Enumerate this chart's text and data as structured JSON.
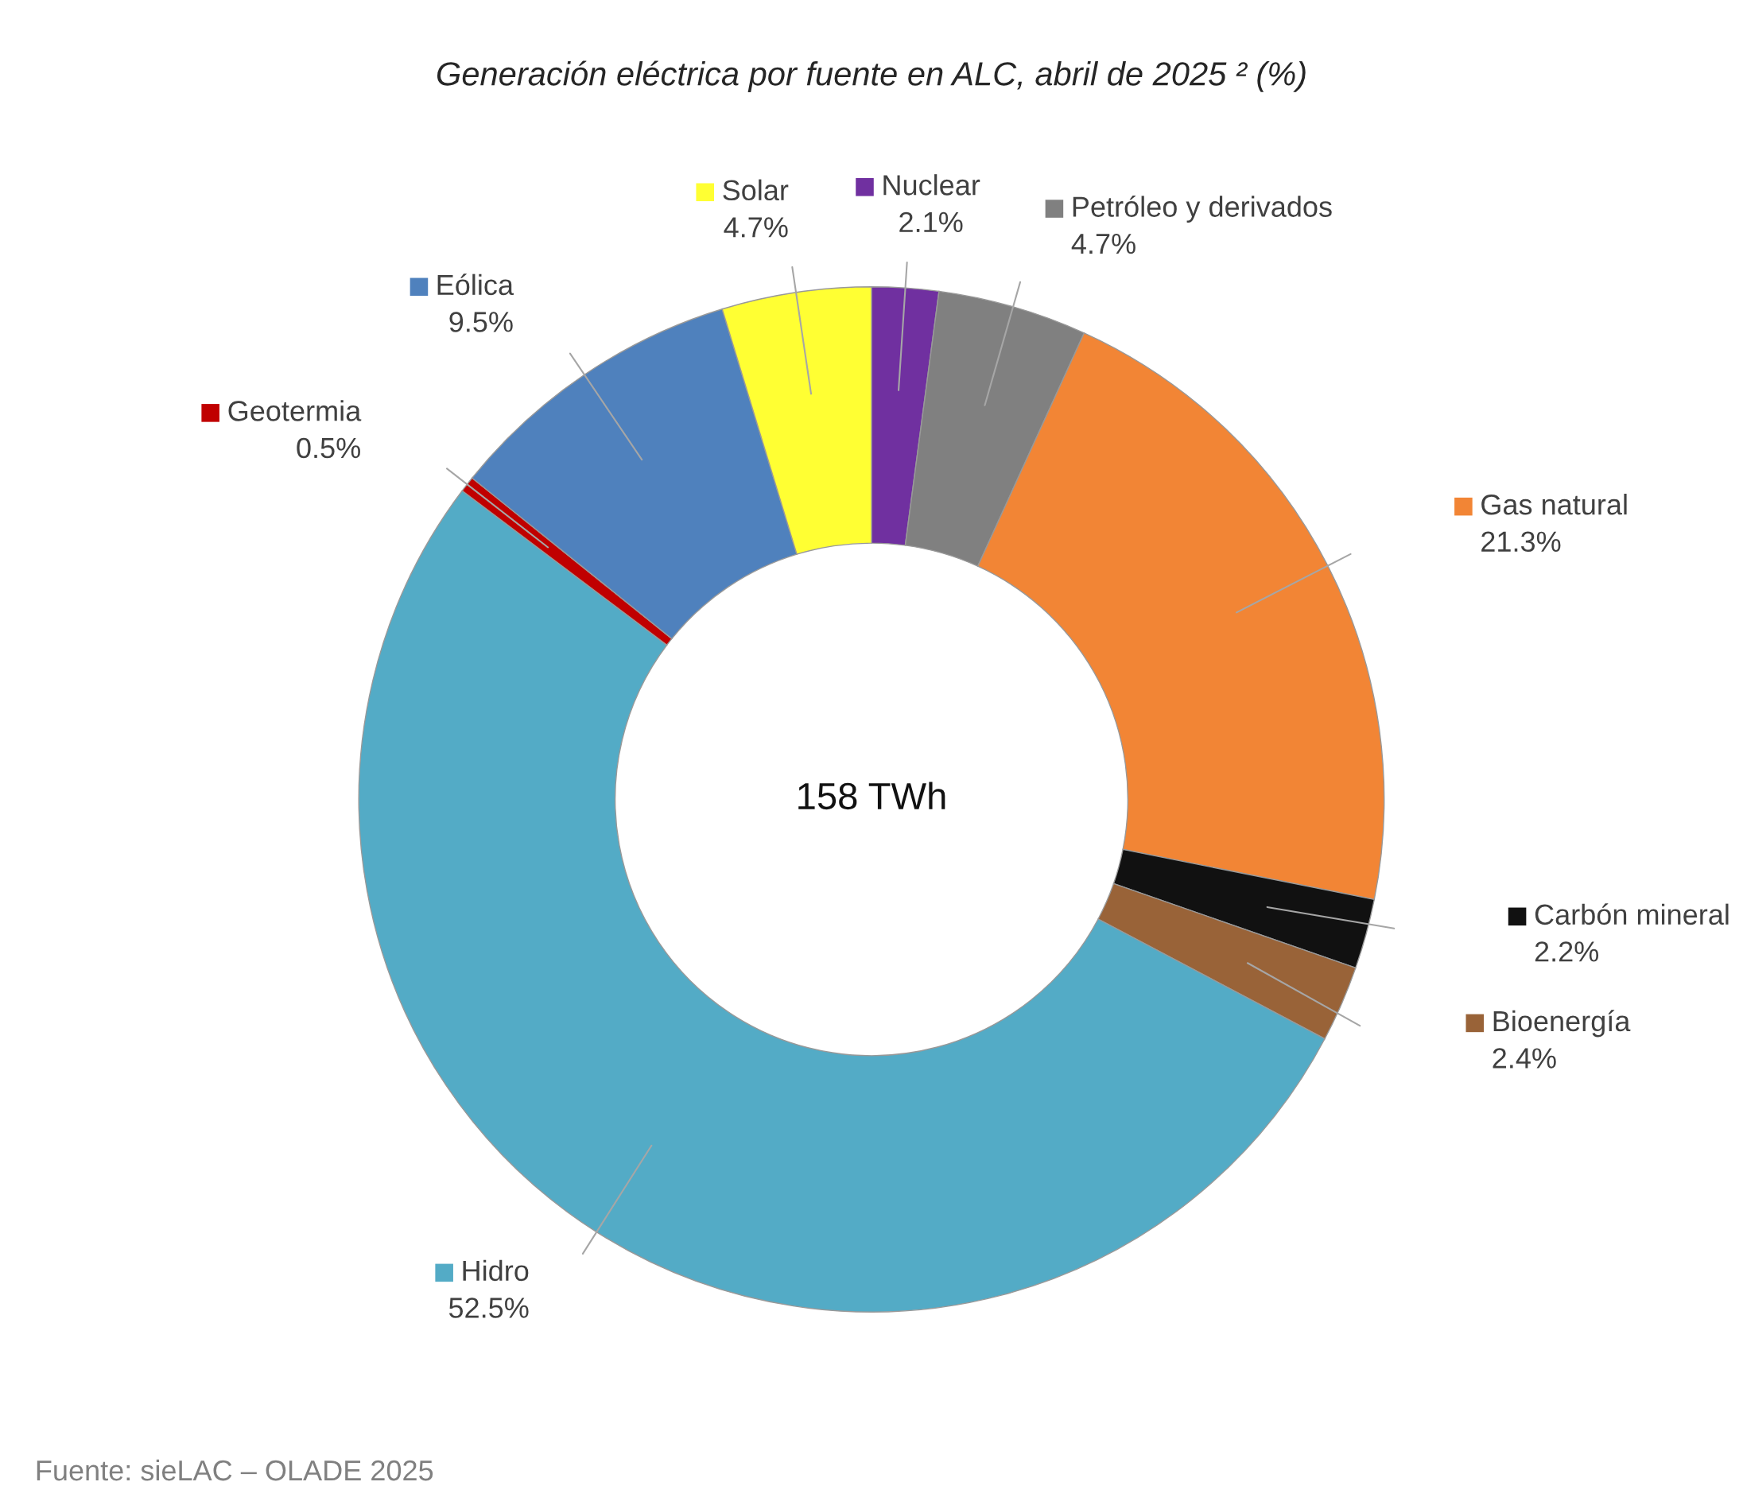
{
  "chart_data": {
    "type": "donut",
    "title": "Generación eléctrica por fuente en ALC, abril de 2025 ² (%)",
    "categories": [
      "Nuclear",
      "Petróleo y derivados",
      "Gas natural",
      "Carbón mineral",
      "Bioenergía",
      "Hidro",
      "Geotermia",
      "Eólica",
      "Solar"
    ],
    "values": [
      2.1,
      4.7,
      21.3,
      2.2,
      2.4,
      52.5,
      0.5,
      9.5,
      4.7
    ],
    "value_labels": [
      "2.1%",
      "4.7%",
      "21.3%",
      "2.2%",
      "2.4%",
      "52.5%",
      "0.5%",
      "9.5%",
      "4.7%"
    ],
    "colors": [
      "#7030a0",
      "#808080",
      "#f28535",
      "#111111",
      "#996338",
      "#53abc6",
      "#c00000",
      "#4f81bd",
      "#ffff33"
    ],
    "annotations": [
      "158 TWh",
      "Fuente: sieLAC – OLADE 2025"
    ],
    "legend": "top right"
  }
}
